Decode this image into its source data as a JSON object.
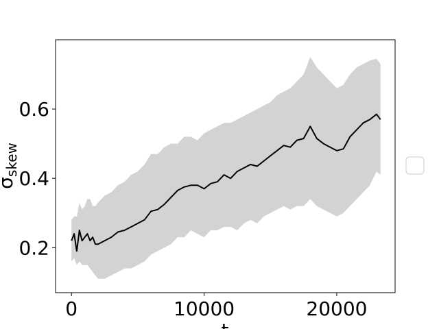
{
  "chart_data": {
    "type": "line",
    "title": "",
    "xlabel": "t",
    "ylabel": "σ",
    "ylabel_subscript": "skew",
    "xlim": [
      -1200,
      24400
    ],
    "ylim": [
      0.07,
      0.8
    ],
    "xticks": [
      0,
      10000,
      20000
    ],
    "xtick_labels": [
      "0",
      "10000",
      "20000"
    ],
    "yticks": [
      0.2,
      0.4,
      0.6
    ],
    "ytick_labels": [
      "0.2",
      "0.4",
      "0.6"
    ],
    "grid": false,
    "legend": {
      "placement": "center-right outside",
      "entries": []
    },
    "colors": {
      "line": "#000000",
      "band": "#d3d3d3"
    },
    "series": [
      {
        "x": [
          0,
          200,
          400,
          600,
          800,
          1000,
          1200,
          1400,
          1600,
          1800,
          2000,
          2500,
          3000,
          3500,
          4000,
          4500,
          5000,
          5500,
          6000,
          6500,
          7000,
          7500,
          8000,
          8500,
          9000,
          9500,
          10000,
          10500,
          11000,
          11500,
          12000,
          12500,
          13000,
          13500,
          14000,
          14500,
          15000,
          15500,
          16000,
          16500,
          17000,
          17500,
          18000,
          18500,
          19000,
          19500,
          20000,
          20500,
          21000,
          21500,
          22000,
          22500,
          23000,
          23300
        ],
        "y": [
          0.22,
          0.24,
          0.19,
          0.25,
          0.22,
          0.23,
          0.24,
          0.22,
          0.23,
          0.21,
          0.21,
          0.22,
          0.23,
          0.245,
          0.25,
          0.26,
          0.27,
          0.28,
          0.305,
          0.31,
          0.325,
          0.345,
          0.365,
          0.375,
          0.38,
          0.38,
          0.37,
          0.385,
          0.39,
          0.41,
          0.4,
          0.42,
          0.43,
          0.44,
          0.435,
          0.45,
          0.465,
          0.48,
          0.495,
          0.49,
          0.51,
          0.515,
          0.55,
          0.515,
          0.5,
          0.49,
          0.48,
          0.485,
          0.52,
          0.54,
          0.56,
          0.57,
          0.585,
          0.57
        ],
        "upper": [
          0.28,
          0.29,
          0.29,
          0.33,
          0.31,
          0.32,
          0.34,
          0.34,
          0.32,
          0.32,
          0.33,
          0.35,
          0.36,
          0.38,
          0.39,
          0.41,
          0.42,
          0.44,
          0.47,
          0.47,
          0.49,
          0.5,
          0.5,
          0.52,
          0.52,
          0.51,
          0.53,
          0.54,
          0.55,
          0.56,
          0.56,
          0.57,
          0.58,
          0.59,
          0.6,
          0.61,
          0.62,
          0.64,
          0.65,
          0.66,
          0.68,
          0.7,
          0.75,
          0.72,
          0.7,
          0.68,
          0.66,
          0.67,
          0.7,
          0.72,
          0.73,
          0.74,
          0.745,
          0.73
        ],
        "lower": [
          0.16,
          0.17,
          0.15,
          0.16,
          0.15,
          0.15,
          0.15,
          0.14,
          0.13,
          0.12,
          0.11,
          0.11,
          0.12,
          0.13,
          0.14,
          0.14,
          0.15,
          0.16,
          0.18,
          0.19,
          0.2,
          0.21,
          0.23,
          0.23,
          0.25,
          0.24,
          0.23,
          0.25,
          0.25,
          0.26,
          0.26,
          0.25,
          0.27,
          0.28,
          0.27,
          0.29,
          0.3,
          0.31,
          0.32,
          0.31,
          0.32,
          0.32,
          0.34,
          0.32,
          0.31,
          0.3,
          0.29,
          0.3,
          0.32,
          0.34,
          0.36,
          0.38,
          0.42,
          0.41
        ]
      }
    ]
  }
}
